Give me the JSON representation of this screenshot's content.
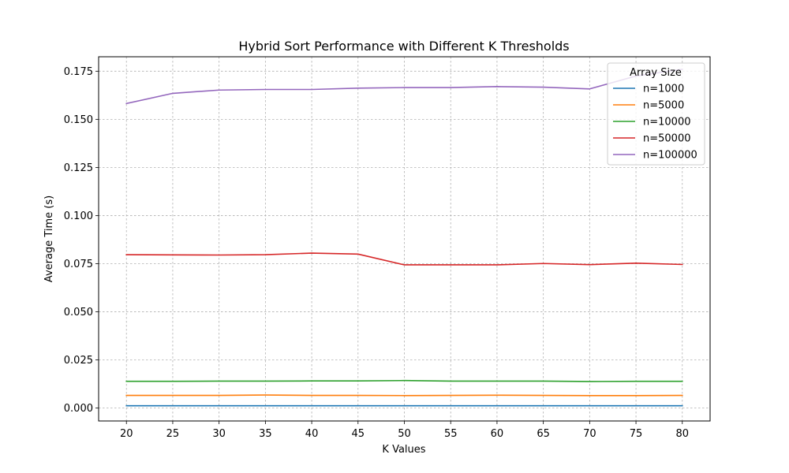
{
  "chart_data": {
    "type": "line",
    "title": "Hybrid Sort Performance with Different K Thresholds",
    "xlabel": "K Values",
    "ylabel": "Average Time (s)",
    "x": [
      20,
      25,
      30,
      35,
      40,
      45,
      50,
      55,
      60,
      65,
      70,
      75,
      80
    ],
    "xticks": [
      "20",
      "25",
      "30",
      "35",
      "40",
      "45",
      "50",
      "55",
      "60",
      "65",
      "70",
      "75",
      "80"
    ],
    "yticks": [
      "0.000",
      "0.025",
      "0.050",
      "0.075",
      "0.100",
      "0.125",
      "0.150",
      "0.175"
    ],
    "ylim": [
      -0.0067,
      0.1825
    ],
    "grid": true,
    "legend": {
      "title": "Array Size",
      "placement": "top-right"
    },
    "series": [
      {
        "name": "n=1000",
        "color": "#1f77b4",
        "values": [
          0.0012,
          0.0012,
          0.0012,
          0.0012,
          0.0012,
          0.0012,
          0.0012,
          0.0012,
          0.0012,
          0.0012,
          0.0012,
          0.0012,
          0.0012
        ]
      },
      {
        "name": "n=5000",
        "color": "#ff7f0e",
        "values": [
          0.0066,
          0.0066,
          0.0066,
          0.0068,
          0.0066,
          0.0066,
          0.0065,
          0.0066,
          0.0067,
          0.0066,
          0.0065,
          0.0065,
          0.0066
        ]
      },
      {
        "name": "n=10000",
        "color": "#2ca02c",
        "values": [
          0.0139,
          0.0139,
          0.014,
          0.014,
          0.0141,
          0.0141,
          0.0143,
          0.014,
          0.014,
          0.014,
          0.0138,
          0.0139,
          0.0139
        ]
      },
      {
        "name": "n=50000",
        "color": "#d62728",
        "values": [
          0.0797,
          0.0796,
          0.0795,
          0.0797,
          0.0805,
          0.08,
          0.0744,
          0.0744,
          0.0744,
          0.0751,
          0.0745,
          0.0753,
          0.0746
        ]
      },
      {
        "name": "n=100000",
        "color": "#9467bd",
        "values": [
          0.1582,
          0.1635,
          0.1652,
          0.1655,
          0.1655,
          0.1662,
          0.1665,
          0.1665,
          0.167,
          0.1667,
          0.1658,
          0.1725,
          0.176
        ]
      }
    ]
  }
}
